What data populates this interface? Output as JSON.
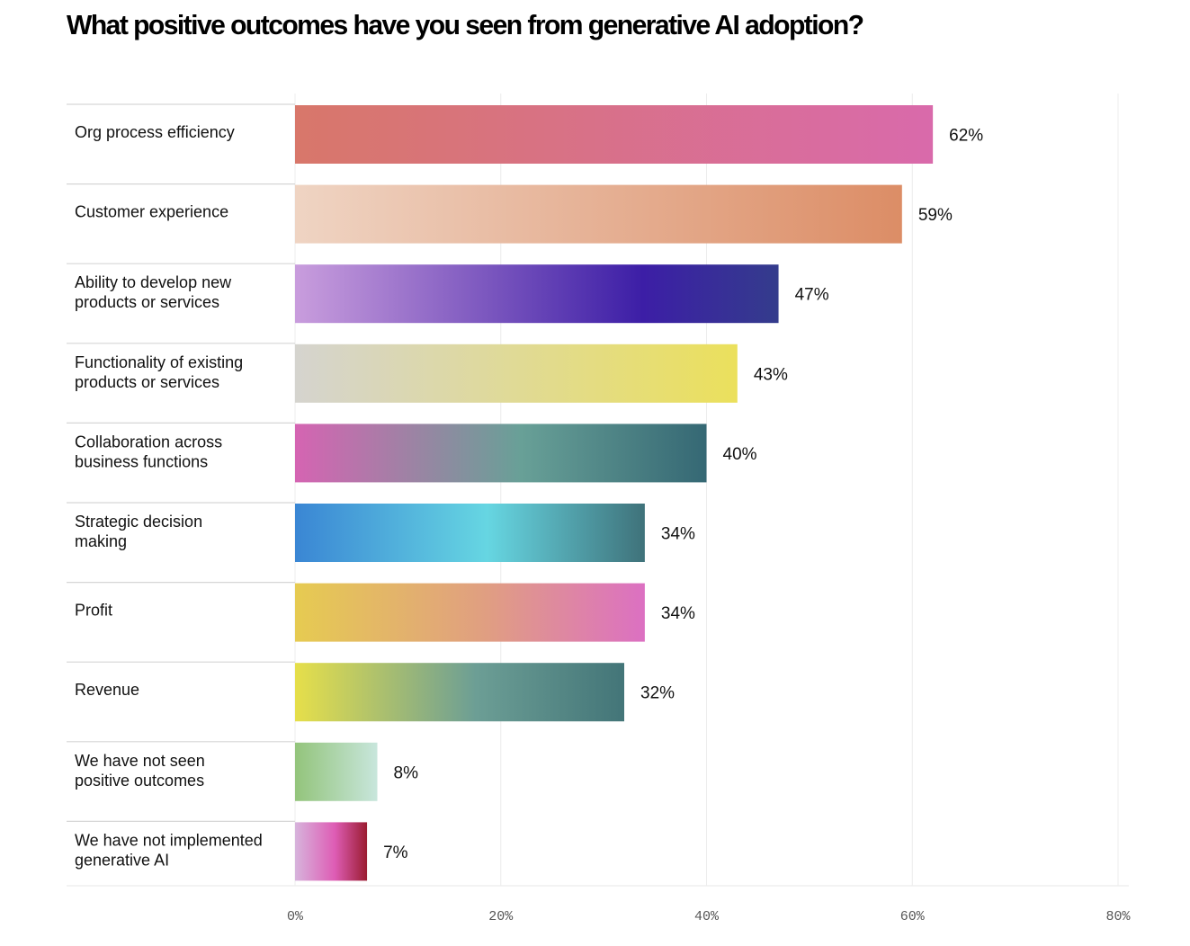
{
  "chart_data": {
    "type": "bar",
    "orientation": "horizontal",
    "title": "What positive outcomes have you seen from generative AI adoption?",
    "xlabel": "",
    "ylabel": "",
    "xlim": [
      0,
      80
    ],
    "x_ticks": [
      0,
      20,
      40,
      60,
      80
    ],
    "x_tick_labels": [
      "0%",
      "20%",
      "40%",
      "60%",
      "80%"
    ],
    "grid": "vertical",
    "categories": [
      [
        "Org process efficiency"
      ],
      [
        "Customer experience"
      ],
      [
        "Ability to develop new",
        "products or services"
      ],
      [
        "Functionality of existing",
        "products or services"
      ],
      [
        "Collaboration across",
        "business functions"
      ],
      [
        "Strategic decision",
        "making"
      ],
      [
        "Profit"
      ],
      [
        "Revenue"
      ],
      [
        "We have not seen",
        "positive outcomes"
      ],
      [
        "We have not implemented",
        "generative AI"
      ]
    ],
    "values": [
      62,
      59,
      47,
      43,
      40,
      34,
      34,
      32,
      8,
      7
    ],
    "value_labels": [
      "62%",
      "59%",
      "47%",
      "43%",
      "40%",
      "34%",
      "34%",
      "32%",
      "8%",
      "7%"
    ],
    "bar_gradients": [
      [
        "#d8776a",
        "#d96aab"
      ],
      [
        "#efd4c3",
        "#dc8d66"
      ],
      [
        "#c99ddd",
        "#3c1ea6",
        "#343c8c"
      ],
      [
        "#d5d4cf",
        "#ebe05c"
      ],
      [
        "#d564b2",
        "#68a097",
        "#356874"
      ],
      [
        "#3a86d4",
        "#66d6e2",
        "#3f727a"
      ],
      [
        "#e6cb51",
        "#e09e82",
        "#dc70c2"
      ],
      [
        "#e6df4a",
        "#6c9e95",
        "#437578"
      ],
      [
        "#93c47b",
        "#c8e6dc"
      ],
      [
        "#d7b4dc",
        "#de5db5",
        "#9b1c31"
      ]
    ]
  }
}
